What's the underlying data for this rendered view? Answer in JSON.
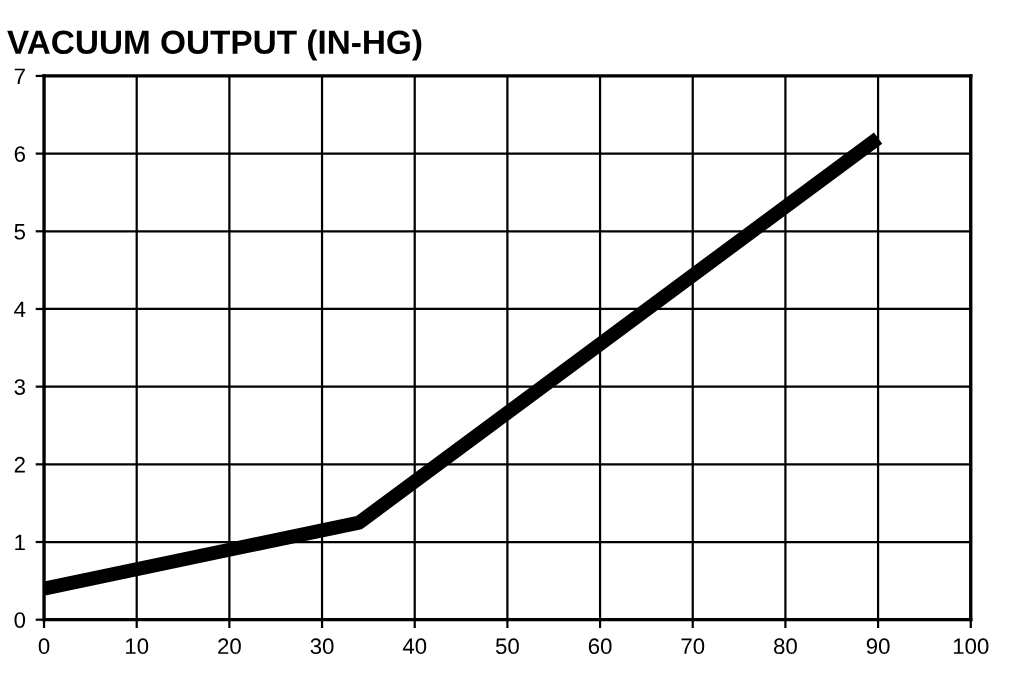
{
  "chart_data": {
    "type": "line",
    "title": "VACUUM OUTPUT (IN-HG)",
    "x": [
      0,
      20,
      34,
      90
    ],
    "series": [
      {
        "color": "#000000",
        "values": [
          0.4,
          0.9,
          1.25,
          6.2
        ]
      }
    ],
    "xlim": [
      0,
      100
    ],
    "xticks": [
      0,
      10,
      20,
      30,
      40,
      50,
      60,
      70,
      80,
      90,
      100
    ],
    "ylim": [
      0,
      7
    ],
    "yticks": [
      0,
      1,
      2,
      3,
      4,
      5,
      6,
      7
    ],
    "grid": true,
    "marker": "none",
    "line_style": "solid"
  }
}
